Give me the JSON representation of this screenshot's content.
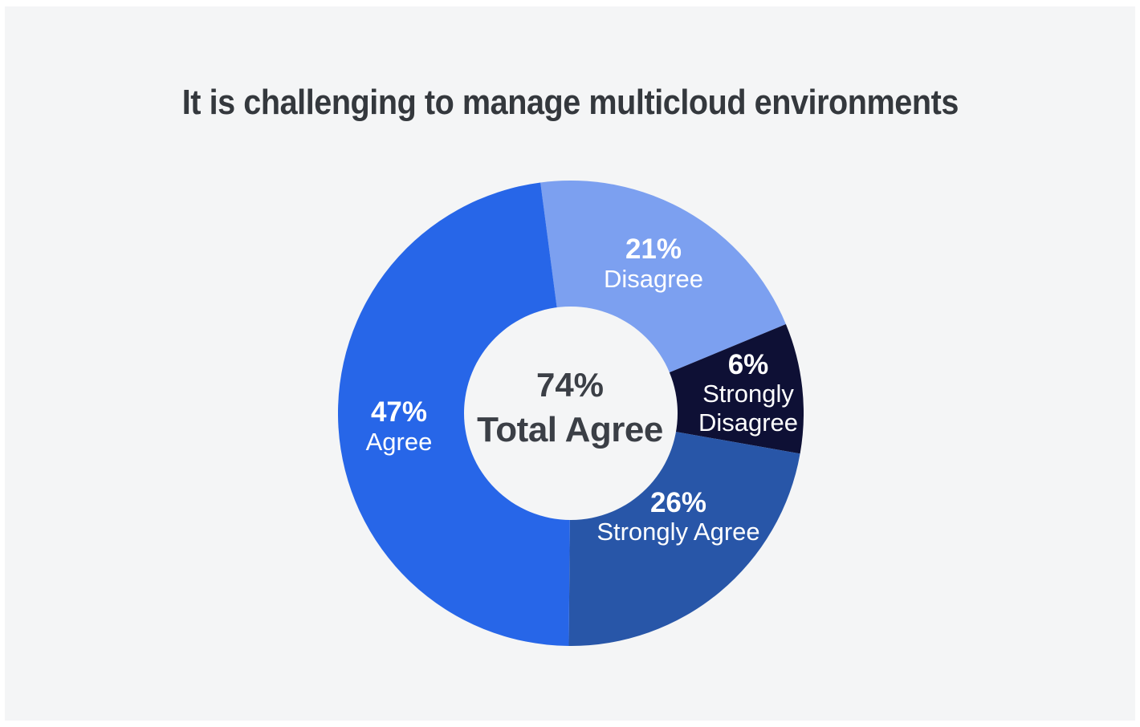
{
  "page": {
    "background_color": "#F4F5F6",
    "frame_color": "#FFFFFF"
  },
  "title": {
    "text": "It is challenging to manage multicloud environments",
    "color": "#34383D"
  },
  "chart_data": {
    "type": "pie",
    "variant": "donut",
    "title": "It is challenging to manage multicloud environments",
    "categories": [
      "Disagree",
      "Strongly Disagree",
      "Strongly Agree",
      "Agree"
    ],
    "values": [
      21,
      6,
      26,
      47
    ],
    "unit": "%",
    "legend": "none",
    "label_text_color": "#FFFFFF",
    "center": {
      "value_label": "74%",
      "caption": "Total Agree",
      "color": "#3B3F46"
    },
    "segments": [
      {
        "label": "Disagree",
        "value": 21,
        "pct_label": "21%",
        "color": "#7CA0F0",
        "drawn_start_deg": -7.5,
        "drawn_end_deg": 67.5
      },
      {
        "label": "Strongly Disagree",
        "value": 6,
        "pct_label": "6%",
        "color": "#0E1035",
        "drawn_start_deg": 67.5,
        "drawn_end_deg": 100
      },
      {
        "label": "Strongly Agree",
        "value": 26,
        "pct_label": "26%",
        "color": "#2856A8",
        "drawn_start_deg": 100,
        "drawn_end_deg": 180.5
      },
      {
        "label": "Agree",
        "value": 47,
        "pct_label": "47%",
        "color": "#2766E8",
        "drawn_start_deg": 180.5,
        "drawn_end_deg": 352.5
      }
    ]
  }
}
